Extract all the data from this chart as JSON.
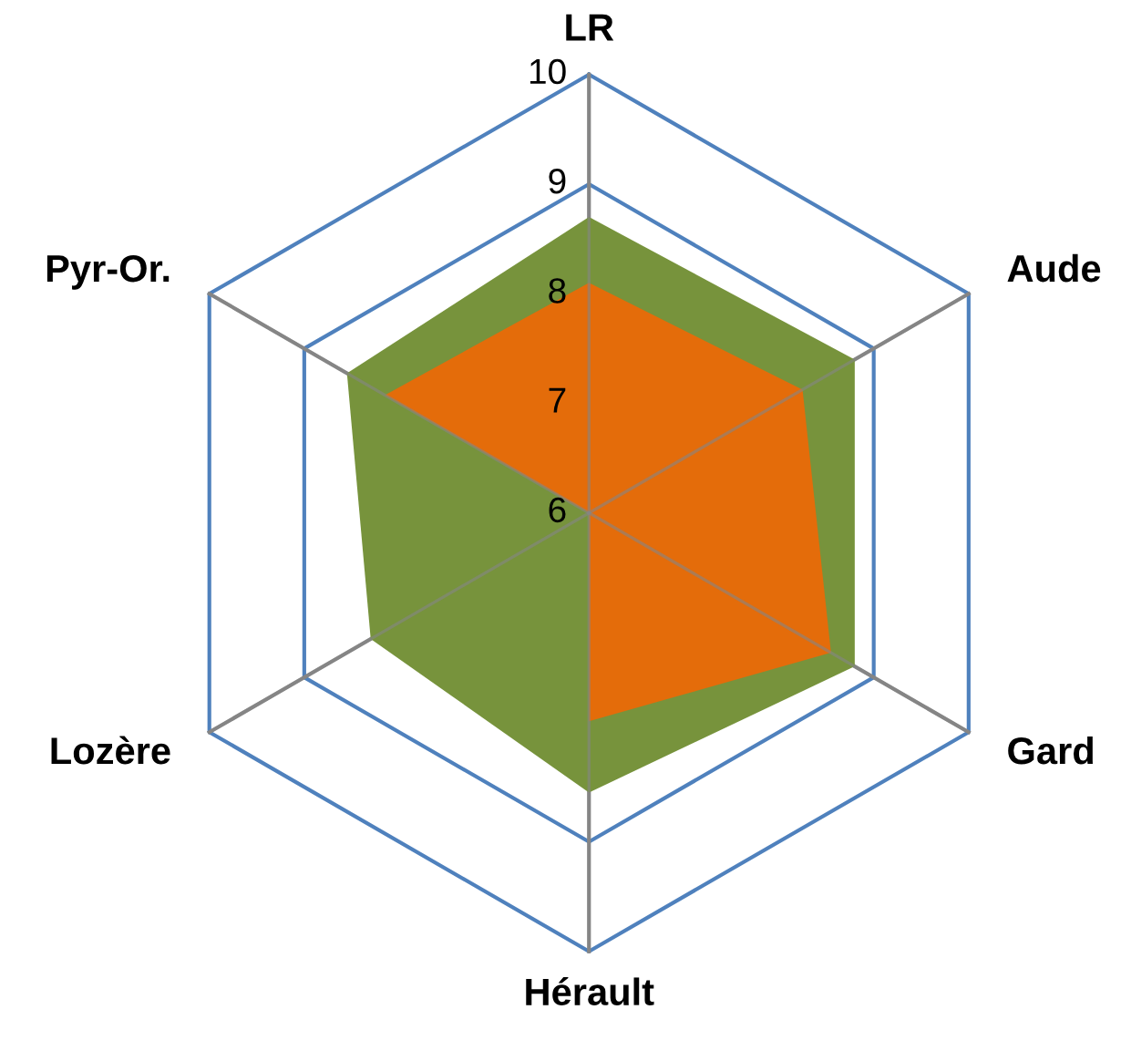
{
  "chart_data": {
    "type": "radar",
    "categories": [
      "LR",
      "Aude",
      "Gard",
      "Hérault",
      "Lozère",
      "Pyr-Or."
    ],
    "series": [
      {
        "color": "#77933c",
        "values": [
          8.7,
          8.8,
          8.8,
          8.55,
          8.3,
          8.55
        ]
      },
      {
        "color": "#e46c0a",
        "values": [
          8.1,
          8.25,
          8.55,
          7.9,
          6,
          8.15
        ]
      }
    ],
    "ylim": [
      6,
      10
    ],
    "yticks": [
      6,
      7,
      8,
      9,
      10
    ],
    "grid": true
  }
}
